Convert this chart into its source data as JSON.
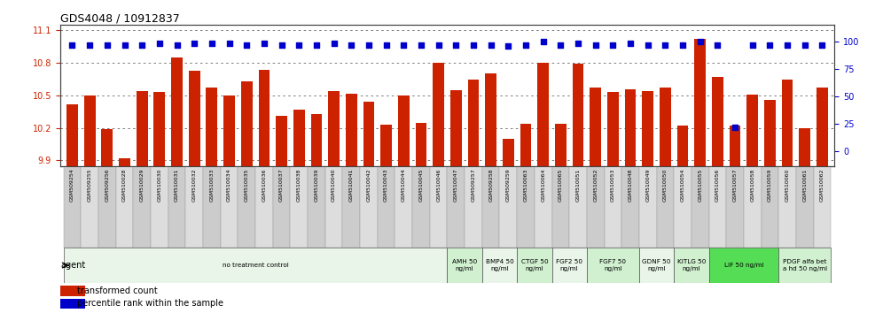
{
  "title": "GDS4048 / 10912837",
  "bar_color": "#cc2200",
  "dot_color": "#0000cc",
  "samples": [
    "GSM509254",
    "GSM509255",
    "GSM509256",
    "GSM510028",
    "GSM510029",
    "GSM510030",
    "GSM510031",
    "GSM510032",
    "GSM510033",
    "GSM510034",
    "GSM510035",
    "GSM510036",
    "GSM510037",
    "GSM510038",
    "GSM510039",
    "GSM510040",
    "GSM510041",
    "GSM510042",
    "GSM510043",
    "GSM510044",
    "GSM510045",
    "GSM510046",
    "GSM510047",
    "GSM509257",
    "GSM509258",
    "GSM509259",
    "GSM510063",
    "GSM510064",
    "GSM510065",
    "GSM510051",
    "GSM510052",
    "GSM510053",
    "GSM510048",
    "GSM510049",
    "GSM510050",
    "GSM510054",
    "GSM510055",
    "GSM510056",
    "GSM510057",
    "GSM510058",
    "GSM510059",
    "GSM510060",
    "GSM510061",
    "GSM510062"
  ],
  "bar_values": [
    10.42,
    10.5,
    10.19,
    9.92,
    10.54,
    10.53,
    10.85,
    10.73,
    10.57,
    10.5,
    10.63,
    10.74,
    10.31,
    10.37,
    10.33,
    10.54,
    10.52,
    10.44,
    10.23,
    10.5,
    10.25,
    10.8,
    10.55,
    10.65,
    10.7,
    10.1,
    10.24,
    10.8,
    10.24,
    10.79,
    10.57,
    10.53,
    10.56,
    10.54,
    10.57,
    10.22,
    11.02,
    10.67,
    10.22,
    10.51,
    10.46,
    10.65,
    10.2,
    10.57
  ],
  "percentile_values": [
    97,
    97,
    97,
    97,
    97,
    98,
    97,
    98,
    98,
    98,
    97,
    98,
    97,
    97,
    97,
    98,
    97,
    97,
    97,
    97,
    97,
    97,
    97,
    97,
    97,
    96,
    97,
    100,
    97,
    98,
    97,
    97,
    98,
    97,
    97,
    97,
    100,
    97,
    22,
    97,
    97,
    97,
    97,
    97
  ],
  "ylim_left": [
    9.85,
    11.15
  ],
  "ylim_right": [
    -13,
    115
  ],
  "yticks_left": [
    9.9,
    10.2,
    10.5,
    10.8,
    11.1
  ],
  "yticks_right": [
    0,
    25,
    50,
    75,
    100
  ],
  "groups": [
    {
      "label": "no treatment control",
      "start": 0,
      "end": 22,
      "color": "#e8f5e8"
    },
    {
      "label": "AMH 50\nng/ml",
      "start": 22,
      "end": 24,
      "color": "#d0f0d0"
    },
    {
      "label": "BMP4 50\nng/ml",
      "start": 24,
      "end": 26,
      "color": "#e8f5e8"
    },
    {
      "label": "CTGF 50\nng/ml",
      "start": 26,
      "end": 28,
      "color": "#d0f0d0"
    },
    {
      "label": "FGF2 50\nng/ml",
      "start": 28,
      "end": 30,
      "color": "#e8f5e8"
    },
    {
      "label": "FGF7 50\nng/ml",
      "start": 30,
      "end": 33,
      "color": "#d0f0d0"
    },
    {
      "label": "GDNF 50\nng/ml",
      "start": 33,
      "end": 35,
      "color": "#e8f5e8"
    },
    {
      "label": "KITLG 50\nng/ml",
      "start": 35,
      "end": 37,
      "color": "#d0f0d0"
    },
    {
      "label": "LIF 50 ng/ml",
      "start": 37,
      "end": 41,
      "color": "#55dd55"
    },
    {
      "label": "PDGF alfa bet\na hd 50 ng/ml",
      "start": 41,
      "end": 44,
      "color": "#d0f0d0"
    }
  ],
  "background_color": "#ffffff",
  "grid_color": "#666666",
  "tick_color_left": "#cc2200",
  "tick_color_right": "#0000cc",
  "fig_width": 9.96,
  "fig_height": 3.54,
  "dpi": 100
}
